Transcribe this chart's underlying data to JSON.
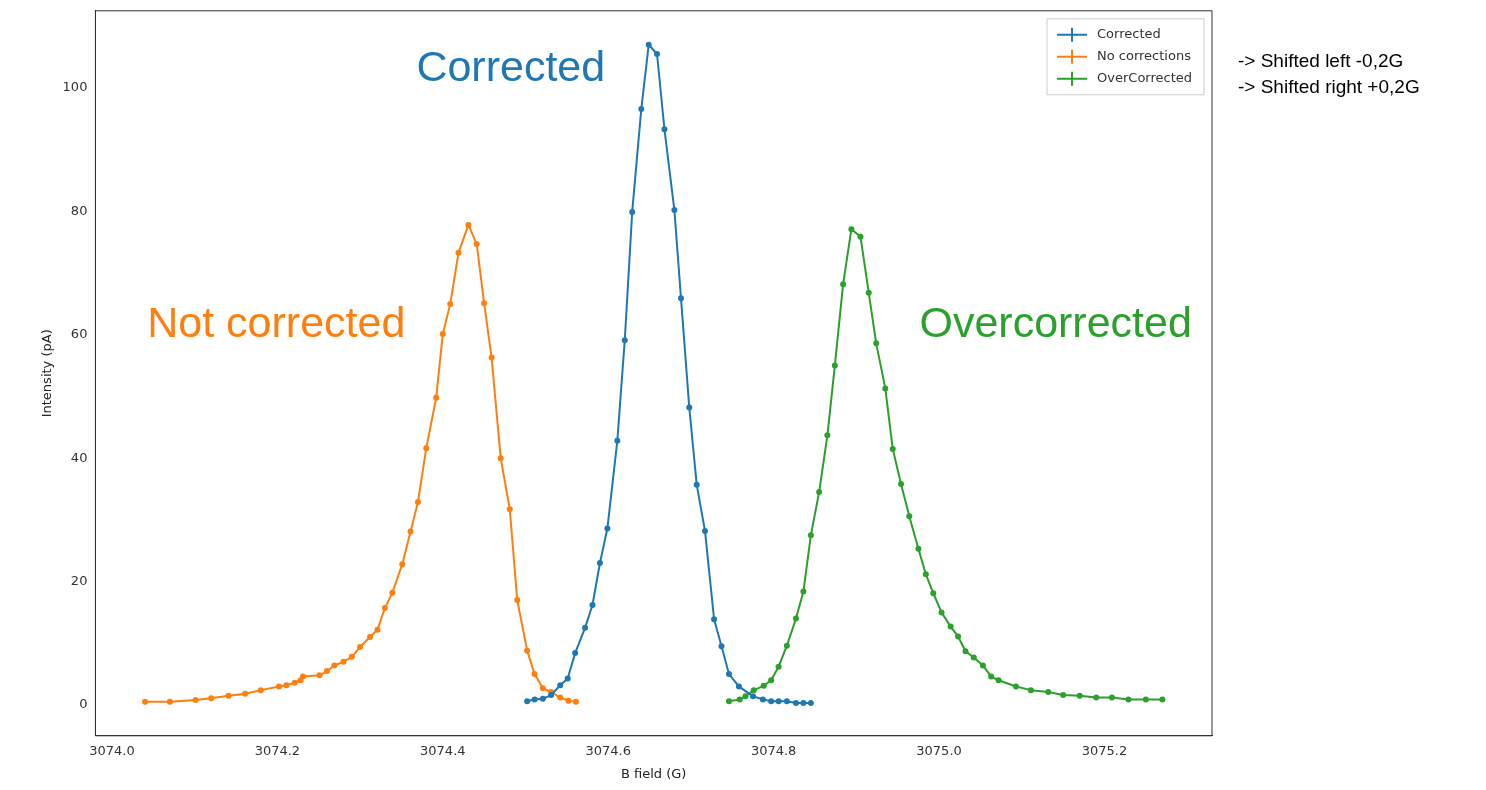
{
  "chart_data": {
    "type": "line",
    "xlabel": "B field (G)",
    "ylabel": "Intensity (pA)",
    "xlim": [
      3073.98,
      3075.33
    ],
    "ylim": [
      -5,
      112.5
    ],
    "xticks": [
      {
        "value": 3074.0,
        "label": "3074.0"
      },
      {
        "value": 3074.2,
        "label": "3074.2"
      },
      {
        "value": 3074.4,
        "label": "3074.4"
      },
      {
        "value": 3074.6,
        "label": "3074.6"
      },
      {
        "value": 3074.8,
        "label": "3074.8"
      },
      {
        "value": 3075.0,
        "label": "3075.0"
      },
      {
        "value": 3075.2,
        "label": "3075.2"
      }
    ],
    "yticks": [
      0,
      20,
      40,
      60,
      80,
      100
    ],
    "grid": false,
    "legend": "top right",
    "marker": "circle",
    "line_style": "solid",
    "series": [
      {
        "name": "Corrected",
        "color": "#1f77b4",
        "x": [
          3074.502,
          3074.511,
          3074.521,
          3074.531,
          3074.542,
          3074.551,
          3074.56,
          3074.572,
          3074.581,
          3074.59,
          3074.599,
          3074.611,
          3074.62,
          3074.629,
          3074.64,
          3074.649,
          3074.659,
          3074.668,
          3074.68,
          3074.688,
          3074.698,
          3074.707,
          3074.717,
          3074.728,
          3074.737,
          3074.746,
          3074.758,
          3074.775,
          3074.787,
          3074.797,
          3074.806,
          3074.816,
          3074.827,
          3074.836,
          3074.845
        ],
        "values": [
          0.6,
          0.9,
          1,
          1.6,
          3.2,
          4.3,
          8.4,
          12.5,
          16.2,
          23,
          28.6,
          42.8,
          59.1,
          79.9,
          96.6,
          107,
          105.5,
          93.3,
          80.2,
          65.9,
          48.2,
          35.7,
          28.2,
          13.9,
          9.5,
          5,
          3,
          1.4,
          0.9,
          0.6,
          0.6,
          0.6,
          0.3,
          0.3,
          0.3
        ]
      },
      {
        "name": "No corrections",
        "color": "#ff7f0e",
        "x": [
          3074.04,
          3074.07,
          3074.101,
          3074.12,
          3074.141,
          3074.161,
          3074.18,
          3074.202,
          3074.211,
          3074.221,
          3074.228,
          3074.231,
          3074.251,
          3074.26,
          3074.269,
          3074.28,
          3074.29,
          3074.3,
          3074.312,
          3074.321,
          3074.33,
          3074.339,
          3074.351,
          3074.361,
          3074.37,
          3074.38,
          3074.392,
          3074.4,
          3074.409,
          3074.419,
          3074.431,
          3074.441,
          3074.45,
          3074.459,
          3074.47,
          3074.481,
          3074.49,
          3074.502,
          3074.511,
          3074.521,
          3074.531,
          3074.542,
          3074.552,
          3074.561
        ],
        "values": [
          0.5,
          0.5,
          0.8,
          1.1,
          1.5,
          1.8,
          2.4,
          3,
          3.2,
          3.6,
          4,
          4.6,
          4.8,
          5.5,
          6.4,
          7,
          7.8,
          9.4,
          11,
          12.2,
          15.7,
          18.2,
          22.8,
          28.1,
          32.9,
          41.6,
          49.8,
          60.1,
          65,
          73.3,
          77.8,
          74.7,
          65.1,
          56.3,
          40,
          31.7,
          17,
          8.8,
          5,
          2.7,
          2.1,
          1.2,
          0.7,
          0.5
        ]
      },
      {
        "name": "OverCorrected",
        "color": "#2ca02c",
        "x": [
          3074.746,
          3074.759,
          3074.766,
          3074.776,
          3074.788,
          3074.797,
          3074.806,
          3074.816,
          3074.827,
          3074.836,
          3074.845,
          3074.855,
          3074.865,
          3074.874,
          3074.884,
          3074.894,
          3074.905,
          3074.915,
          3074.924,
          3074.935,
          3074.944,
          3074.954,
          3074.964,
          3074.975,
          3074.984,
          3074.993,
          3075.003,
          3075.014,
          3075.023,
          3075.032,
          3075.042,
          3075.053,
          3075.063,
          3075.072,
          3075.093,
          3075.111,
          3075.132,
          3075.15,
          3075.17,
          3075.19,
          3075.209,
          3075.229,
          3075.25,
          3075.27
        ],
        "values": [
          0.6,
          0.9,
          1.4,
          2.4,
          3.1,
          4,
          6.2,
          9.6,
          14,
          18.4,
          27.5,
          34.5,
          43.7,
          55,
          68.2,
          77.1,
          75.9,
          66.8,
          58.6,
          51.3,
          41.5,
          35.8,
          30.6,
          25.3,
          21.2,
          18.1,
          15,
          12.7,
          11.1,
          8.7,
          7.7,
          6.4,
          4.6,
          4,
          3,
          2.4,
          2.1,
          1.6,
          1.5,
          1.2,
          1.2,
          0.9,
          0.9,
          0.9
        ]
      }
    ],
    "annotations": [
      "Corrected",
      "Not corrected",
      "Overcorrected",
      "-> Shifted left -0,2G",
      "-> Shifted right +0,2G"
    ]
  }
}
